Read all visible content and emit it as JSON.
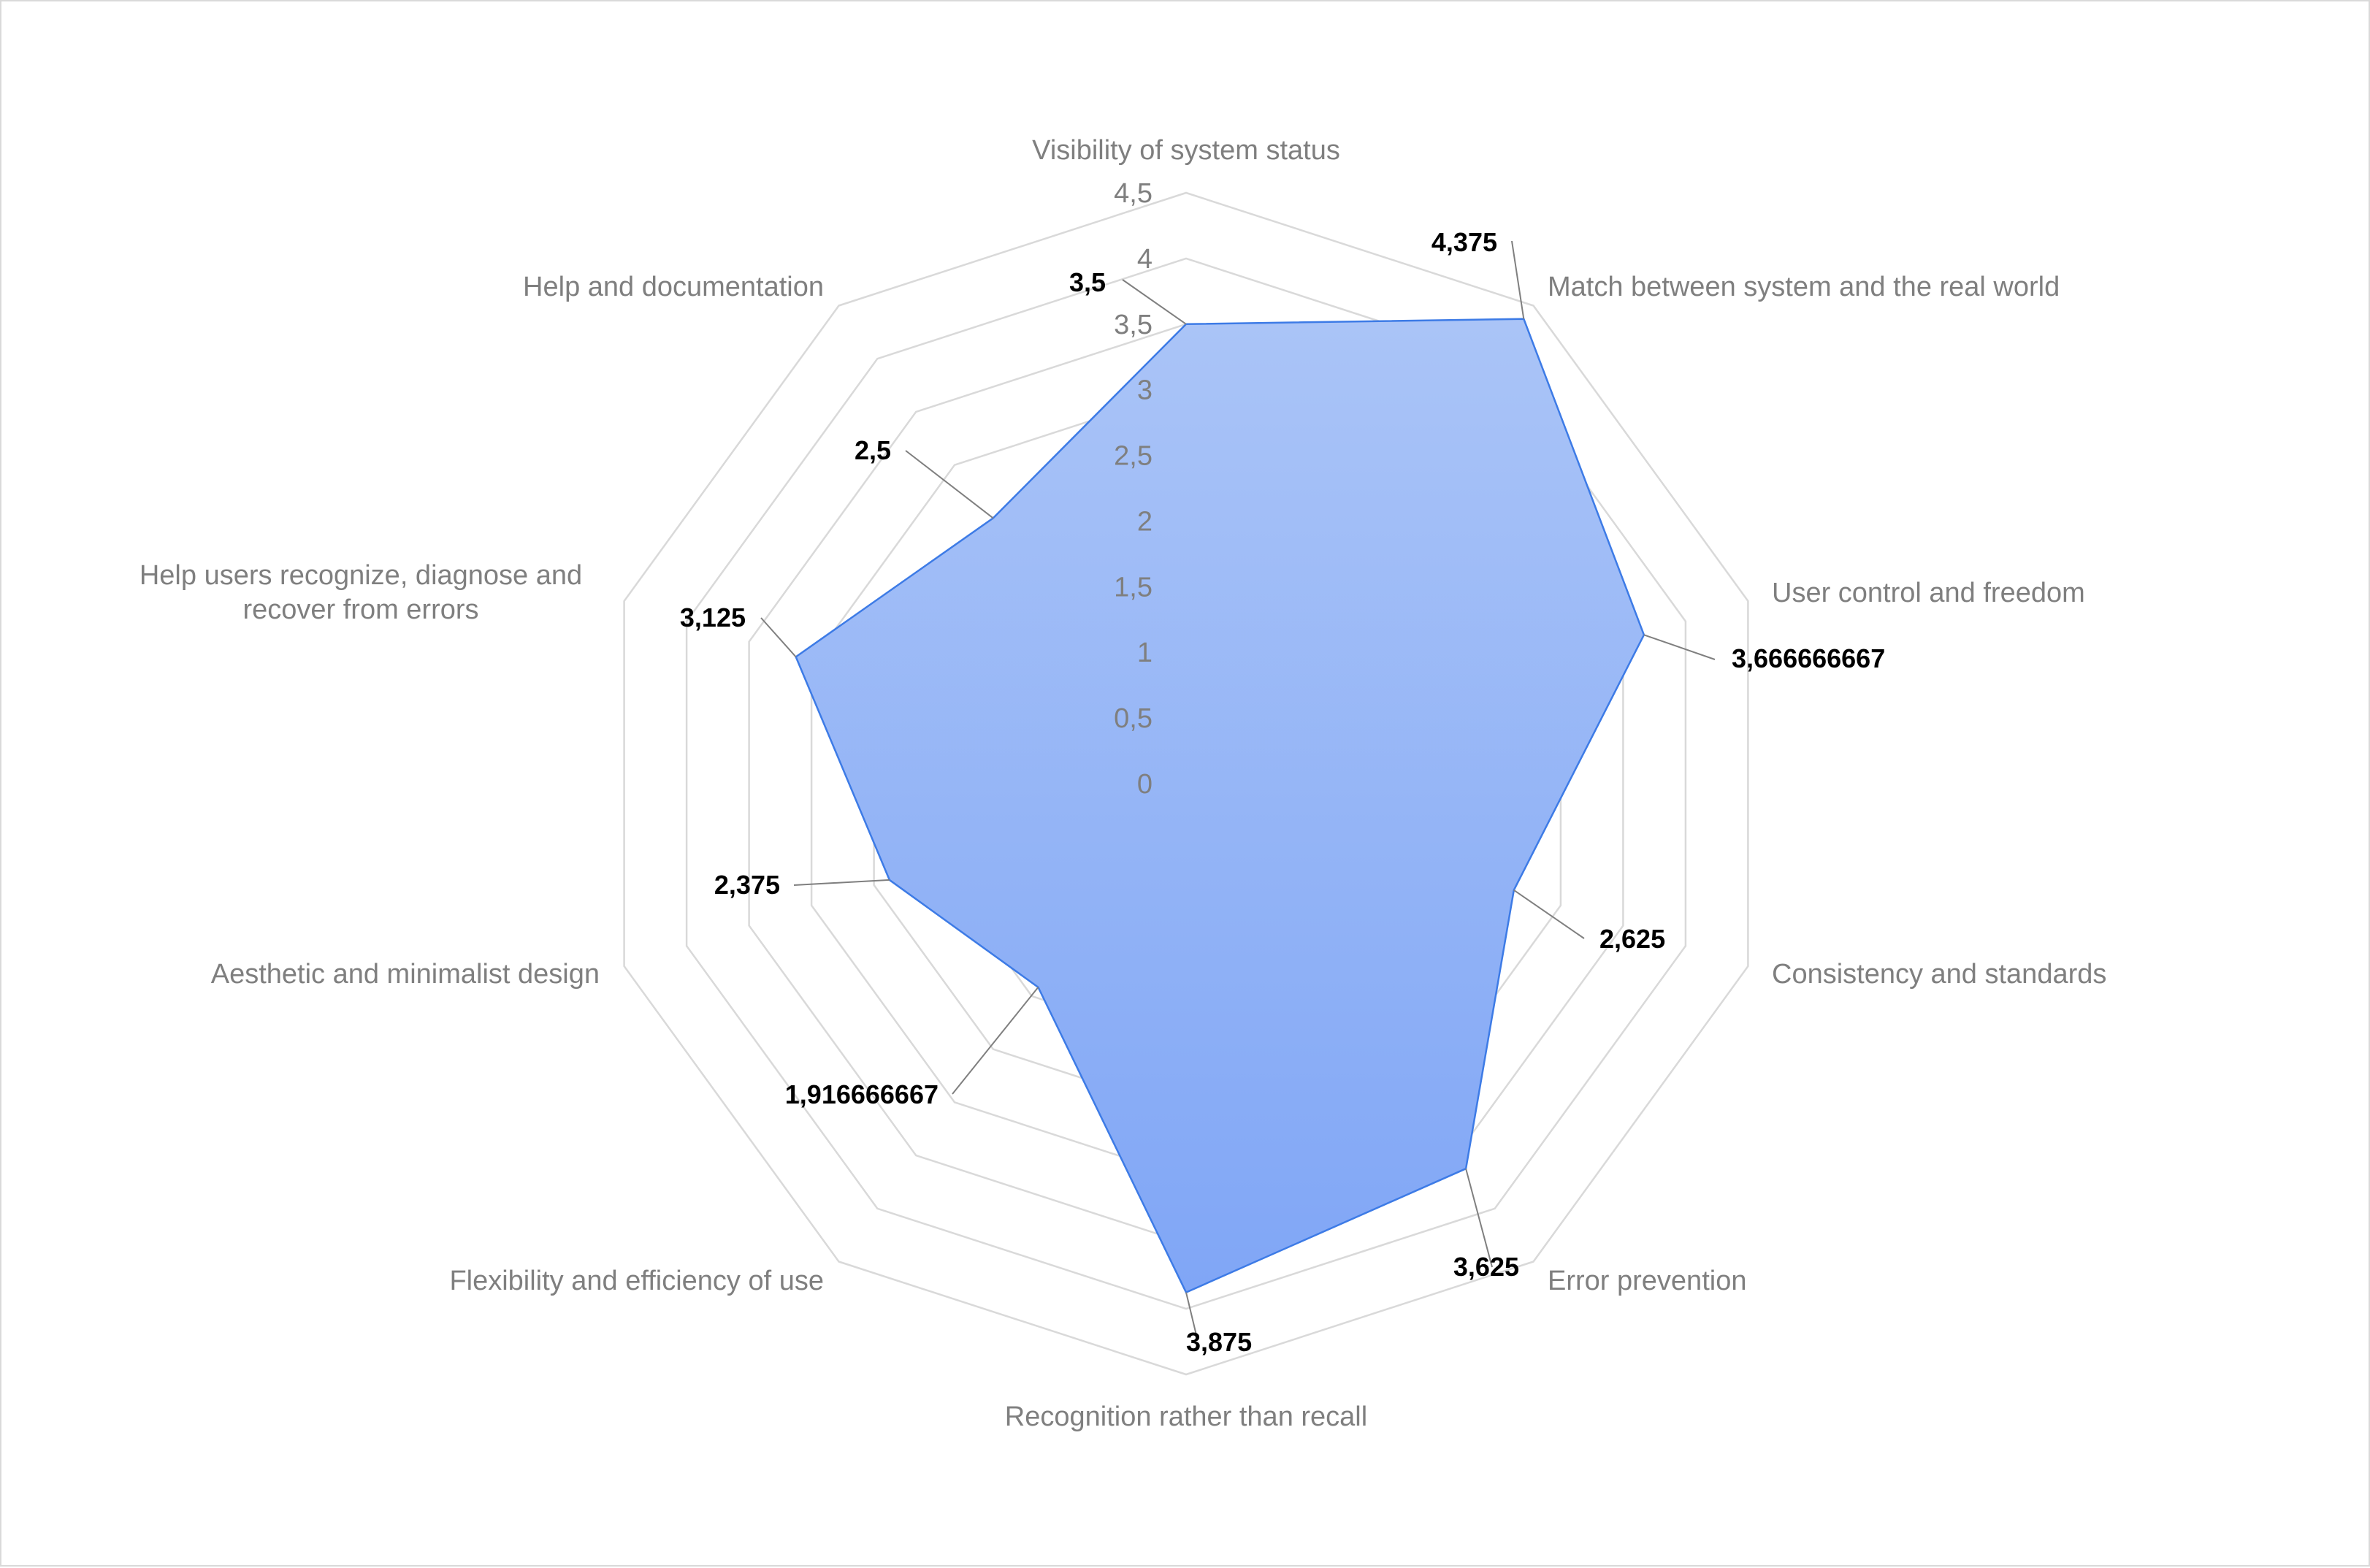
{
  "chart_data": {
    "type": "radar",
    "title": "",
    "categories": [
      "Visibility of system status",
      "Match between system and the real world",
      "User control and freedom",
      "Consistency and standards",
      "Error prevention",
      "Recognition rather than recall",
      "Flexibility and efficiency of use",
      "Aesthetic and minimalist design",
      "Help users recognize, diagnose and recover from errors",
      "Help and documentation"
    ],
    "series": [
      {
        "values": [
          3.5,
          4.375,
          3.666666667,
          2.625,
          3.625,
          3.875,
          1.916666667,
          2.375,
          3.125,
          2.5
        ],
        "data_labels": [
          "3,5",
          "4,375",
          "3,666666667",
          "2,625",
          "3,625",
          "3,875",
          "1,916666667",
          "2,375",
          "3,125",
          "2,5"
        ]
      }
    ],
    "rlim": [
      0,
      4.5
    ],
    "ticks": [
      0,
      0.5,
      1,
      1.5,
      2,
      2.5,
      3,
      3.5,
      4,
      4.5
    ],
    "tick_labels": [
      "0",
      "0,5",
      "1",
      "1,5",
      "2",
      "2,5",
      "3",
      "3,5",
      "4",
      "4,5"
    ],
    "grid": true,
    "legend": "none",
    "colors": {
      "fill_top": "#aac4f7",
      "fill_bottom": "#80a6f6",
      "stroke": "#3d7be6",
      "grid": "#d9d9d9",
      "text": "#7f7f7f",
      "data_label": "#000000"
    }
  }
}
